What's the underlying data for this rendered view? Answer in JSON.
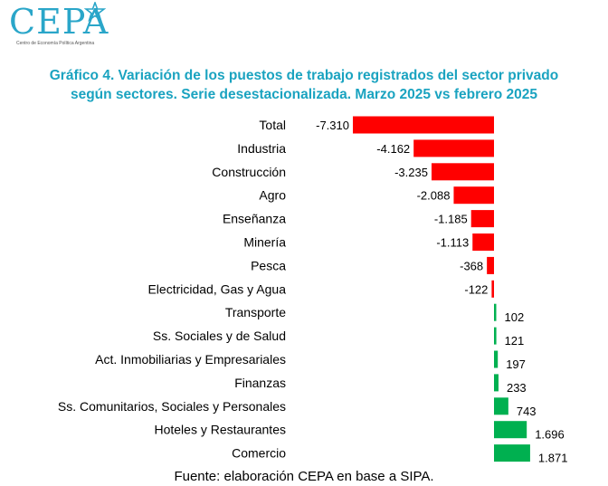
{
  "brand": {
    "logo_text": "CEPA",
    "logo_subtitle": "Centro de Economía Política Argentina"
  },
  "colors": {
    "title": "#1aa3c0",
    "logo": "#2aa6c9",
    "negative": "#ff0000",
    "positive": "#00b050",
    "text": "#000000"
  },
  "header": {
    "title_line1": "Gráfico 4. Variación de los puestos de trabajo registrados del sector privado",
    "title_line2": "según sectores. Serie desestacionalizada. Marzo 2025 vs febrero 2025"
  },
  "chart_data": {
    "type": "bar",
    "orientation": "horizontal",
    "categories": [
      "Total",
      "Industria",
      "Construcción",
      "Agro",
      "Enseñanza",
      "Minería",
      "Pesca",
      "Electricidad, Gas y Agua",
      "Transporte",
      "Ss. Sociales y de Salud",
      "Act. Inmobiliarias y Empresariales",
      "Finanzas",
      "Ss. Comunitarios, Sociales y Personales",
      "Hoteles y Restaurantes",
      "Comercio"
    ],
    "values": [
      -7310,
      -4162,
      -3235,
      -2088,
      -1185,
      -1113,
      -368,
      -122,
      102,
      121,
      197,
      233,
      743,
      1696,
      1871
    ],
    "value_labels": [
      "-7.310",
      "-4.162",
      "-3.235",
      "-2.088",
      "-1.185",
      "-1.113",
      "-368",
      "-122",
      "102",
      "121",
      "197",
      "233",
      "743",
      "1.696",
      "1.871"
    ],
    "grid": false,
    "legend": "none"
  },
  "footer": {
    "source": "Fuente: elaboración CEPA en base a SIPA."
  }
}
